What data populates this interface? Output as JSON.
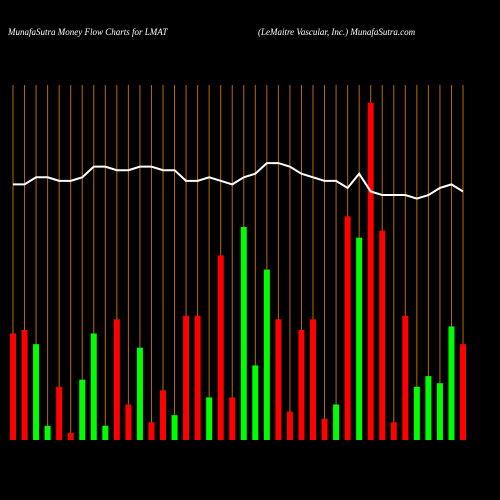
{
  "chart_data": {
    "type": "bar",
    "title": "MunafaSutra  Money Flow  Charts for LMAT",
    "subtitle": "(LeMaitre  Vascular,  Inc.) MunafaSutra.com",
    "categories": [
      null,
      null,
      null,
      null,
      null,
      null,
      null,
      null,
      null,
      null,
      null,
      null,
      null,
      null,
      null,
      null,
      null,
      null,
      null,
      null,
      null,
      null,
      null,
      null,
      null,
      null,
      null,
      null,
      null,
      null,
      null,
      null,
      null,
      null,
      null,
      null,
      null,
      null,
      null,
      null
    ],
    "ylim": [
      0,
      100
    ],
    "grid": true,
    "grid_color": "#b8690f",
    "series": [
      {
        "type": "bar",
        "values": [
          30,
          31,
          27,
          4,
          15,
          2,
          17,
          30,
          4,
          34,
          10,
          26,
          5,
          14,
          7,
          35,
          35,
          12,
          52,
          12,
          60,
          21,
          48,
          34,
          8,
          31,
          34,
          6,
          10,
          63,
          57,
          95,
          59,
          5,
          35,
          15,
          18,
          16,
          32,
          27
        ],
        "colors": [
          "#ff0000",
          "#ff0000",
          "#00ff00",
          "#00ff00",
          "#ff0000",
          "#ff0000",
          "#00ff00",
          "#00ff00",
          "#00ff00",
          "#ff0000",
          "#ff0000",
          "#00ff00",
          "#ff0000",
          "#ff0000",
          "#00ff00",
          "#ff0000",
          "#ff0000",
          "#00ff00",
          "#ff0000",
          "#ff0000",
          "#00ff00",
          "#00ff00",
          "#00ff00",
          "#ff0000",
          "#ff0000",
          "#ff0000",
          "#ff0000",
          "#ff0000",
          "#00ff00",
          "#ff0000",
          "#00ff00",
          "#ff0000",
          "#ff0000",
          "#ff0000",
          "#ff0000",
          "#00ff00",
          "#00ff00",
          "#00ff00",
          "#00ff00",
          "#ff0000"
        ]
      },
      {
        "type": "line",
        "color": "#ffffff",
        "values": [
          72,
          72,
          74,
          74,
          73,
          73,
          74,
          77,
          77,
          76,
          76,
          77,
          77,
          76,
          76,
          73,
          73,
          74,
          73,
          72,
          74,
          75,
          78,
          78,
          77,
          75,
          74,
          73,
          73,
          71,
          75,
          70,
          69,
          69,
          69,
          68,
          69,
          71,
          72,
          70
        ]
      }
    ]
  }
}
